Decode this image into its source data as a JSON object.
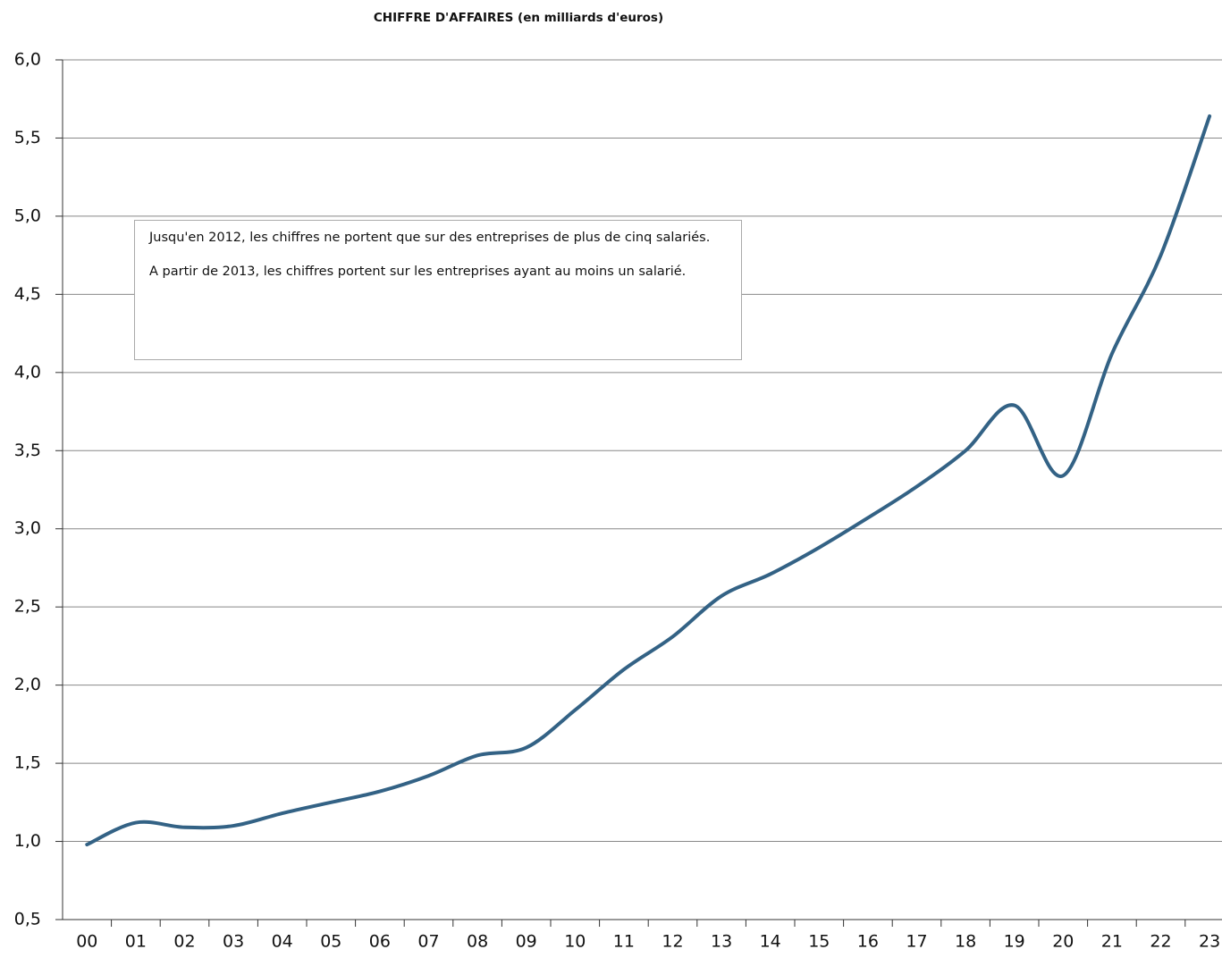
{
  "chart_data": {
    "type": "line",
    "title": "CHIFFRE D'AFFAIRES (en milliards d'euros)",
    "annotation": [
      "Jusqu'en 2012, les chiffres ne portent que sur des entreprises de plus de cinq salariés.",
      "A partir de 2013, les chiffres portent sur les entreprises ayant au moins un salarié."
    ],
    "categories": [
      "00",
      "01",
      "02",
      "03",
      "04",
      "05",
      "06",
      "07",
      "08",
      "09",
      "10",
      "11",
      "12",
      "13",
      "14",
      "15",
      "16",
      "17",
      "18",
      "19",
      "20",
      "21",
      "22",
      "23"
    ],
    "series": [
      {
        "name": "Chiffre d'affaires",
        "color": "#336285",
        "values": [
          0.98,
          1.12,
          1.09,
          1.1,
          1.18,
          1.25,
          1.32,
          1.42,
          1.55,
          1.6,
          1.84,
          2.1,
          2.31,
          2.57,
          2.71,
          2.88,
          3.07,
          3.27,
          3.5,
          3.79,
          3.34,
          4.12,
          4.75,
          5.64
        ]
      }
    ],
    "ylim": [
      0.5,
      6.0
    ],
    "yticks": [
      {
        "value": 0.5,
        "label": "0,5"
      },
      {
        "value": 1.0,
        "label": "1,0"
      },
      {
        "value": 1.5,
        "label": "1,5"
      },
      {
        "value": 2.0,
        "label": "2,0"
      },
      {
        "value": 2.5,
        "label": "2,5"
      },
      {
        "value": 3.0,
        "label": "3,0"
      },
      {
        "value": 3.5,
        "label": "3,5"
      },
      {
        "value": 4.0,
        "label": "4,0"
      },
      {
        "value": 4.5,
        "label": "4,5"
      },
      {
        "value": 5.0,
        "label": "5,0"
      },
      {
        "value": 5.5,
        "label": "5,5"
      },
      {
        "value": 6.0,
        "label": "6,0"
      }
    ],
    "grid": true
  }
}
